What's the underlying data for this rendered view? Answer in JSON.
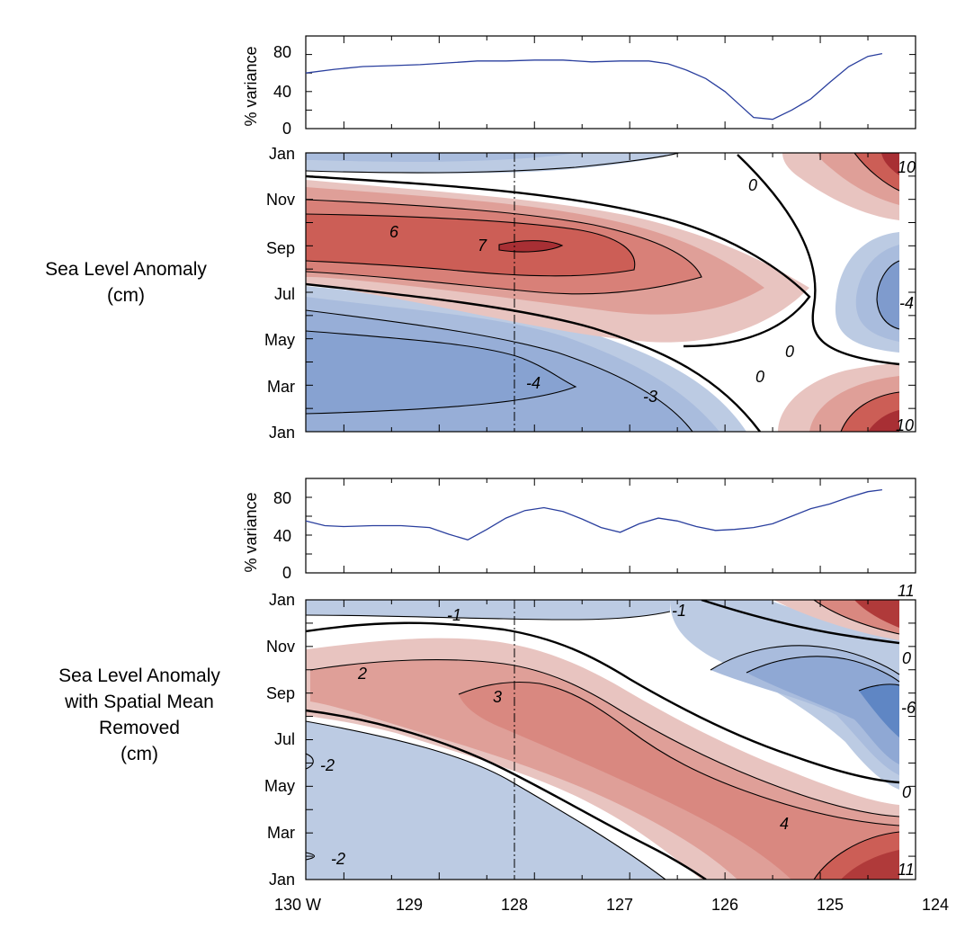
{
  "figure": {
    "panel1_label_lines": [
      "Sea Level Anomaly",
      "(cm)"
    ],
    "panel2_label_lines": [
      "Sea Level Anomaly",
      "with  Spatial Mean",
      "Removed",
      "(cm)"
    ],
    "colors": {
      "axis": "#000000",
      "variance_line": "#2a3f9e",
      "reference_line": "#000000"
    }
  },
  "chart_data": [
    {
      "type": "line",
      "panel": "variance-top",
      "ylabel": "% variance",
      "ylim": [
        0,
        100
      ],
      "yticks": [
        0,
        40,
        80
      ],
      "xlim": [
        130.4,
        124
      ],
      "series": [
        {
          "x": [
            130.4,
            130.1,
            129.8,
            129.5,
            129.2,
            128.9,
            128.6,
            128.3,
            128.0,
            127.7,
            127.4,
            127.1,
            126.8,
            126.6,
            126.4,
            126.2,
            126.0,
            125.85,
            125.7,
            125.5,
            125.3,
            125.1,
            124.9,
            124.7,
            124.5,
            124.35
          ],
          "values": [
            60,
            64,
            67,
            68,
            69,
            71,
            73,
            73,
            74,
            74,
            72,
            73,
            73,
            70,
            63,
            54,
            40,
            26,
            12,
            10,
            20,
            32,
            50,
            67,
            78,
            81
          ]
        }
      ]
    },
    {
      "type": "heatmap",
      "panel": "sea-level-anomaly",
      "xlim": [
        130.4,
        124
      ],
      "x_ticks": [
        "130 W",
        "129",
        "128",
        "127",
        "126",
        "125",
        "124"
      ],
      "y_ticks": [
        "Jan",
        "Mar",
        "May",
        "Jul",
        "Sep",
        "Nov",
        "Jan"
      ],
      "contour_labels": [
        "10",
        "0",
        "6",
        "7",
        "-4",
        "0",
        "0",
        "-4",
        "-3",
        "10"
      ],
      "reference_longitude": 128
    },
    {
      "type": "line",
      "panel": "variance-bottom",
      "ylabel": "% variance",
      "ylim": [
        0,
        100
      ],
      "yticks": [
        0,
        40,
        80
      ],
      "xlim": [
        130.4,
        124
      ],
      "series": [
        {
          "x": [
            130.4,
            130.2,
            130.0,
            129.7,
            129.4,
            129.1,
            128.9,
            128.7,
            128.5,
            128.3,
            128.1,
            127.9,
            127.7,
            127.5,
            127.3,
            127.1,
            126.9,
            126.7,
            126.5,
            126.3,
            126.1,
            125.9,
            125.7,
            125.5,
            125.3,
            125.1,
            124.9,
            124.7,
            124.5,
            124.35
          ],
          "values": [
            55,
            50,
            49,
            50,
            50,
            48,
            41,
            35,
            46,
            58,
            66,
            69,
            65,
            57,
            48,
            43,
            52,
            58,
            55,
            49,
            45,
            46,
            48,
            52,
            60,
            68,
            73,
            80,
            86,
            88
          ]
        }
      ]
    },
    {
      "type": "heatmap",
      "panel": "sea-level-anomaly-spatial-mean-removed",
      "xlim": [
        130.4,
        124
      ],
      "x_ticks": [
        "130 W",
        "129",
        "128",
        "127",
        "126",
        "125",
        "124"
      ],
      "y_ticks": [
        "Jan",
        "Mar",
        "May",
        "Jul",
        "Sep",
        "Nov",
        "Jan"
      ],
      "contour_labels": [
        "11",
        "-1",
        "-1",
        "0",
        "2",
        "3",
        "-6",
        "-2",
        "0",
        "4",
        "-2",
        "11"
      ],
      "reference_longitude": 128
    }
  ]
}
